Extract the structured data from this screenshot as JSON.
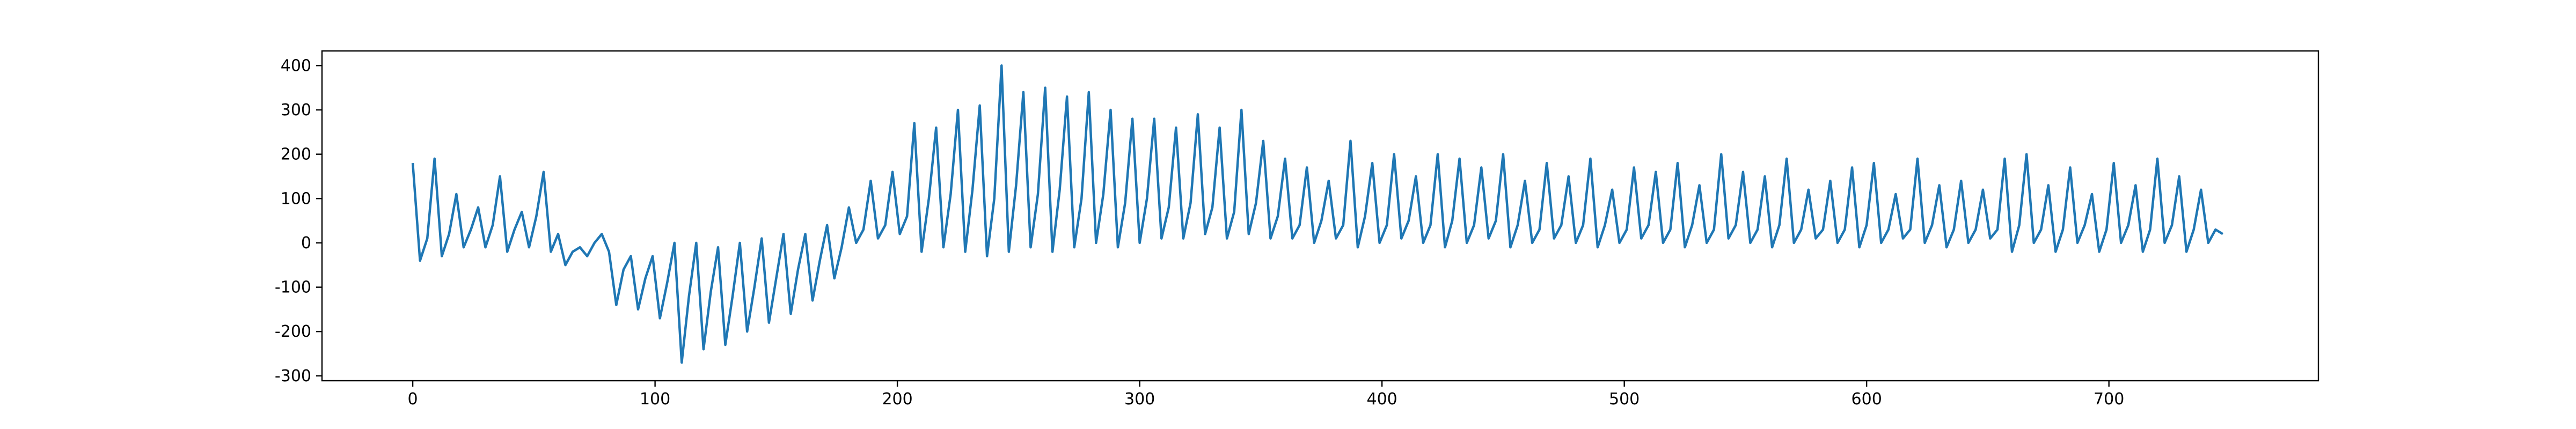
{
  "chart_data": {
    "type": "line",
    "color": "#1f77b4",
    "x": [
      0,
      3,
      6,
      9,
      12,
      15,
      18,
      21,
      24,
      27,
      30,
      33,
      36,
      39,
      42,
      45,
      48,
      51,
      54,
      57,
      60,
      63,
      66,
      69,
      72,
      75,
      78,
      81,
      84,
      87,
      90,
      93,
      96,
      99,
      102,
      105,
      108,
      111,
      114,
      117,
      120,
      123,
      126,
      129,
      132,
      135,
      138,
      141,
      144,
      147,
      150,
      153,
      156,
      159,
      162,
      165,
      168,
      171,
      174,
      177,
      180,
      183,
      186,
      189,
      192,
      195,
      198,
      201,
      204,
      207,
      210,
      213,
      216,
      219,
      222,
      225,
      228,
      231,
      234,
      237,
      240,
      243,
      246,
      249,
      252,
      255,
      258,
      261,
      264,
      267,
      270,
      273,
      276,
      279,
      282,
      285,
      288,
      291,
      294,
      297,
      300,
      303,
      306,
      309,
      312,
      315,
      318,
      321,
      324,
      327,
      330,
      333,
      336,
      339,
      342,
      345,
      348,
      351,
      354,
      357,
      360,
      363,
      366,
      369,
      372,
      375,
      378,
      381,
      384,
      387,
      390,
      393,
      396,
      399,
      402,
      405,
      408,
      411,
      414,
      417,
      420,
      423,
      426,
      429,
      432,
      435,
      438,
      441,
      444,
      447,
      450,
      453,
      456,
      459,
      462,
      465,
      468,
      471,
      474,
      477,
      480,
      483,
      486,
      489,
      492,
      495,
      498,
      501,
      504,
      507,
      510,
      513,
      516,
      519,
      522,
      525,
      528,
      531,
      534,
      537,
      540,
      543,
      546,
      549,
      552,
      555,
      558,
      561,
      564,
      567,
      570,
      573,
      576,
      579,
      582,
      585,
      588,
      591,
      594,
      597,
      600,
      603,
      606,
      609,
      612,
      615,
      618,
      621,
      624,
      627,
      630,
      633,
      636,
      639,
      642,
      645,
      648,
      651,
      654,
      657,
      660,
      663,
      666,
      669,
      672,
      675,
      678,
      681,
      684,
      687,
      690,
      693,
      696,
      699,
      702,
      705,
      708,
      711,
      714,
      717,
      720,
      723,
      726,
      729,
      732,
      735,
      738,
      741,
      744,
      747
    ],
    "values": [
      180,
      -40,
      10,
      190,
      -30,
      20,
      110,
      -10,
      30,
      80,
      -10,
      40,
      150,
      -20,
      30,
      70,
      -10,
      60,
      160,
      -20,
      20,
      -50,
      -20,
      -10,
      -30,
      0,
      20,
      -20,
      -140,
      -60,
      -30,
      -150,
      -80,
      -30,
      -170,
      -90,
      0,
      -270,
      -120,
      0,
      -240,
      -110,
      -10,
      -230,
      -120,
      0,
      -200,
      -100,
      10,
      -180,
      -80,
      20,
      -160,
      -60,
      20,
      -130,
      -40,
      40,
      -80,
      -10,
      80,
      0,
      30,
      140,
      10,
      40,
      160,
      20,
      60,
      270,
      -20,
      100,
      260,
      -10,
      110,
      300,
      -20,
      120,
      310,
      -30,
      100,
      400,
      -20,
      130,
      340,
      -10,
      110,
      350,
      -20,
      120,
      330,
      -10,
      100,
      340,
      0,
      110,
      300,
      -10,
      90,
      280,
      0,
      100,
      280,
      10,
      80,
      260,
      10,
      90,
      290,
      20,
      80,
      260,
      10,
      70,
      300,
      20,
      90,
      230,
      10,
      60,
      190,
      10,
      40,
      170,
      0,
      50,
      140,
      10,
      40,
      230,
      -10,
      60,
      180,
      0,
      40,
      200,
      10,
      50,
      150,
      0,
      40,
      200,
      -10,
      50,
      190,
      0,
      40,
      170,
      10,
      50,
      200,
      -10,
      40,
      140,
      0,
      30,
      180,
      10,
      40,
      150,
      0,
      40,
      190,
      -10,
      40,
      120,
      0,
      30,
      170,
      10,
      40,
      160,
      0,
      30,
      180,
      -10,
      40,
      130,
      0,
      30,
      200,
      10,
      40,
      160,
      0,
      30,
      150,
      -10,
      40,
      190,
      0,
      30,
      120,
      10,
      30,
      140,
      0,
      30,
      170,
      -10,
      40,
      180,
      0,
      30,
      110,
      10,
      30,
      190,
      0,
      40,
      130,
      -10,
      30,
      140,
      0,
      30,
      120,
      10,
      30,
      190,
      -20,
      40,
      200,
      0,
      30,
      130,
      -20,
      30,
      170,
      0,
      40,
      110,
      -20,
      30,
      180,
      0,
      40,
      130,
      -20,
      30,
      190,
      0,
      40,
      150,
      -20,
      30,
      120,
      0,
      30,
      20
    ],
    "xlim": [
      -37.45,
      786.45
    ],
    "xticks": [
      0,
      100,
      200,
      300,
      400,
      500,
      600,
      700
    ],
    "ylim": [
      -311,
      433
    ],
    "yticks": [
      -300,
      -200,
      -100,
      0,
      100,
      200,
      300,
      400
    ]
  }
}
